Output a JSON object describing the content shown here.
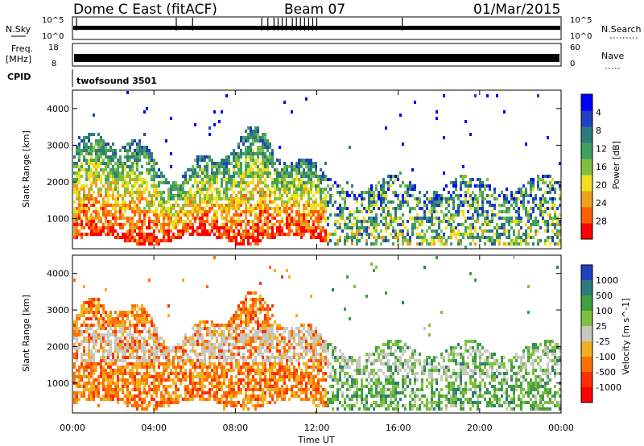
{
  "header": {
    "station": "Dome C East (fitACF)",
    "beam": "Beam 07",
    "date": "01/Mar/2015"
  },
  "strips": {
    "nsky_label": "N.Sky",
    "nsky_ticks": [
      "10^5",
      "10^0"
    ],
    "nsearch_label": "N.Search",
    "freq_label_1": "Freq.",
    "freq_label_2": "[MHz]",
    "freq_ticks": [
      "18",
      "8"
    ],
    "nave_label": "Nave",
    "nave_ticks": [
      "60",
      "0"
    ],
    "cpid_label": "CPID",
    "cpid_value": "twofsound 3501"
  },
  "chart_data": [
    {
      "type": "heatmap",
      "name": "power",
      "ylabel": "Slant Range [km]",
      "ylim": [
        180,
        4500
      ],
      "yticks": [
        "1000",
        "2000",
        "3000",
        "4000"
      ],
      "xlim": [
        0,
        24
      ],
      "colorbar": {
        "label": "Power [dB]",
        "ticks": [
          "4",
          "8",
          "12",
          "16",
          "20",
          "24",
          "28"
        ],
        "colors": [
          "#0000ff",
          "#2040c0",
          "#2d7b7b",
          "#40a060",
          "#80c040",
          "#f0e020",
          "#f0a020",
          "#ff6000",
          "#ff0000"
        ]
      },
      "regions": [
        {
          "t0": 0.0,
          "t1": 12.4,
          "r0": 500,
          "r1": 3200,
          "level": "high"
        },
        {
          "t0": 12.4,
          "t1": 24.0,
          "r0": 300,
          "r1": 2300,
          "level": "mixed"
        }
      ]
    },
    {
      "type": "heatmap",
      "name": "velocity",
      "ylabel": "Slant Range [km]",
      "ylim": [
        180,
        4500
      ],
      "yticks": [
        "1000",
        "2000",
        "3000",
        "4000"
      ],
      "xlim": [
        0,
        24
      ],
      "xticks": [
        "00:00",
        "04:00",
        "08:00",
        "12:00",
        "16:00",
        "20:00",
        "00:00"
      ],
      "xlabel": "Time UT",
      "colorbar": {
        "label": "Velocity [m s^-1]",
        "ticks": [
          "1000",
          "500",
          "100",
          "25",
          "-25",
          "-100",
          "-500",
          "-1000"
        ],
        "colors": [
          "#2040c0",
          "#2d7b7b",
          "#40a040",
          "#80c040",
          "#c8c8c0",
          "#f0b020",
          "#ff7000",
          "#ff3000",
          "#ff0000"
        ]
      },
      "regions": [
        {
          "t0": 0.0,
          "t1": 12.4,
          "r0": 400,
          "r1": 3300,
          "level": "negative"
        },
        {
          "t0": 12.4,
          "t1": 24.0,
          "r0": 300,
          "r1": 2300,
          "level": "positive"
        }
      ]
    }
  ]
}
